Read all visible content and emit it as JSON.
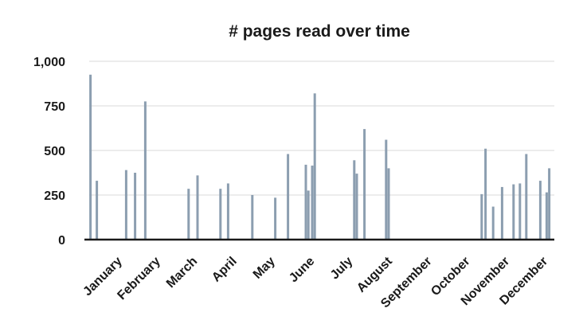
{
  "chart_data": {
    "type": "bar",
    "title": "# pages read over time",
    "xlabel": "",
    "ylabel": "",
    "ylim": [
      0,
      1000
    ],
    "yticks": [
      0,
      250,
      500,
      750,
      1000
    ],
    "ytick_labels": [
      "0",
      "250",
      "500",
      "750",
      "1,000"
    ],
    "xlim": [
      1,
      366
    ],
    "x_unit": "day of year",
    "months": [
      {
        "label": "January",
        "day": 16
      },
      {
        "label": "February",
        "day": 46
      },
      {
        "label": "March",
        "day": 75
      },
      {
        "label": "April",
        "day": 106
      },
      {
        "label": "May",
        "day": 136
      },
      {
        "label": "June",
        "day": 167
      },
      {
        "label": "July",
        "day": 197
      },
      {
        "label": "August",
        "day": 228
      },
      {
        "label": "September",
        "day": 259
      },
      {
        "label": "October",
        "day": 289
      },
      {
        "label": "November",
        "day": 320
      },
      {
        "label": "December",
        "day": 350
      }
    ],
    "x": [
      2,
      7,
      30,
      37,
      45,
      79,
      86,
      104,
      110,
      129,
      147,
      157,
      171,
      173,
      176,
      178,
      209,
      211,
      217,
      234,
      236,
      309,
      312,
      318,
      325,
      334,
      339,
      344,
      355,
      360,
      362
    ],
    "values": [
      925,
      330,
      390,
      375,
      775,
      285,
      360,
      285,
      315,
      250,
      235,
      480,
      420,
      275,
      415,
      820,
      445,
      370,
      620,
      560,
      400,
      255,
      510,
      185,
      295,
      310,
      315,
      480,
      330,
      265,
      400
    ],
    "bar_color": "#8c9eb0",
    "grid": true,
    "legend": "none"
  }
}
